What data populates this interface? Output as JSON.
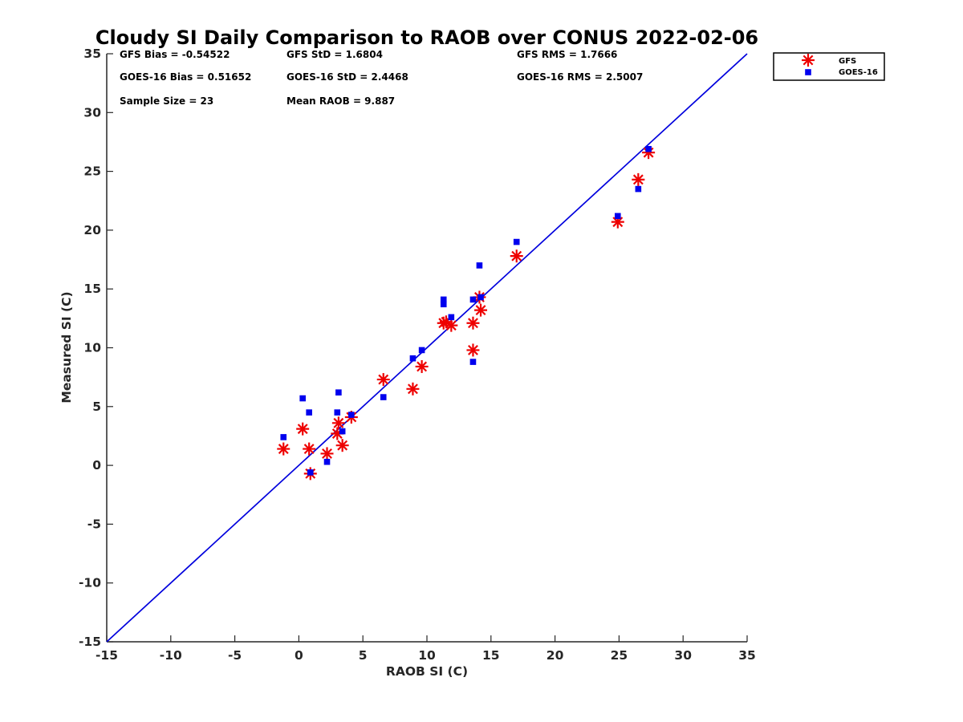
{
  "chart_data": {
    "type": "scatter",
    "title": "Cloudy SI Daily Comparison to RAOB over CONUS 2022-02-06",
    "xlabel": "RAOB SI (C)",
    "ylabel": "Measured SI (C)",
    "xlim": [
      -15,
      35
    ],
    "ylim": [
      -15,
      35
    ],
    "xticks": [
      -15,
      -10,
      -5,
      0,
      5,
      10,
      15,
      20,
      25,
      30,
      35
    ],
    "yticks": [
      -15,
      -10,
      -5,
      0,
      5,
      10,
      15,
      20,
      25,
      30,
      35
    ],
    "grid": false,
    "legend_position": "outside top-right",
    "stats": [
      "GFS Bias = -0.54522",
      "GFS StD = 1.6804",
      "GFS RMS = 1.7666",
      "GOES-16 Bias = 0.51652",
      "GOES-16 StD = 2.4468",
      "GOES-16 RMS = 2.5007",
      "Sample Size = 23",
      "Mean RAOB = 9.887"
    ],
    "one_to_one_line": {
      "color": "#0000dd"
    },
    "series": [
      {
        "name": "GFS",
        "marker": "asterisk",
        "color": "#ee0000",
        "points": [
          [
            -1.2,
            1.4
          ],
          [
            0.3,
            3.1
          ],
          [
            0.8,
            1.4
          ],
          [
            0.9,
            -0.7
          ],
          [
            2.2,
            1.0
          ],
          [
            3.0,
            2.7
          ],
          [
            3.1,
            3.6
          ],
          [
            3.4,
            1.7
          ],
          [
            4.1,
            4.1
          ],
          [
            6.6,
            7.3
          ],
          [
            8.9,
            6.5
          ],
          [
            9.6,
            8.4
          ],
          [
            11.3,
            12.1
          ],
          [
            11.5,
            12.2
          ],
          [
            11.9,
            11.9
          ],
          [
            13.6,
            12.1
          ],
          [
            13.6,
            9.8
          ],
          [
            14.1,
            14.3
          ],
          [
            14.2,
            13.2
          ],
          [
            17.0,
            17.8
          ],
          [
            24.9,
            20.7
          ],
          [
            26.5,
            24.3
          ],
          [
            27.3,
            26.6
          ]
        ]
      },
      {
        "name": "GOES-16",
        "marker": "square",
        "color": "#0000ee",
        "points": [
          [
            -1.2,
            2.4
          ],
          [
            0.3,
            5.7
          ],
          [
            0.8,
            4.5
          ],
          [
            0.9,
            -0.6
          ],
          [
            2.2,
            0.3
          ],
          [
            3.0,
            4.5
          ],
          [
            3.1,
            6.2
          ],
          [
            3.4,
            2.9
          ],
          [
            4.1,
            4.3
          ],
          [
            6.6,
            5.8
          ],
          [
            8.9,
            9.1
          ],
          [
            9.6,
            9.8
          ],
          [
            11.3,
            14.1
          ],
          [
            11.3,
            13.7
          ],
          [
            11.9,
            12.6
          ],
          [
            13.6,
            14.1
          ],
          [
            13.6,
            8.8
          ],
          [
            14.1,
            17.0
          ],
          [
            14.2,
            14.3
          ],
          [
            17.0,
            19.0
          ],
          [
            24.9,
            21.2
          ],
          [
            26.5,
            23.5
          ],
          [
            27.3,
            26.9
          ]
        ]
      }
    ]
  }
}
